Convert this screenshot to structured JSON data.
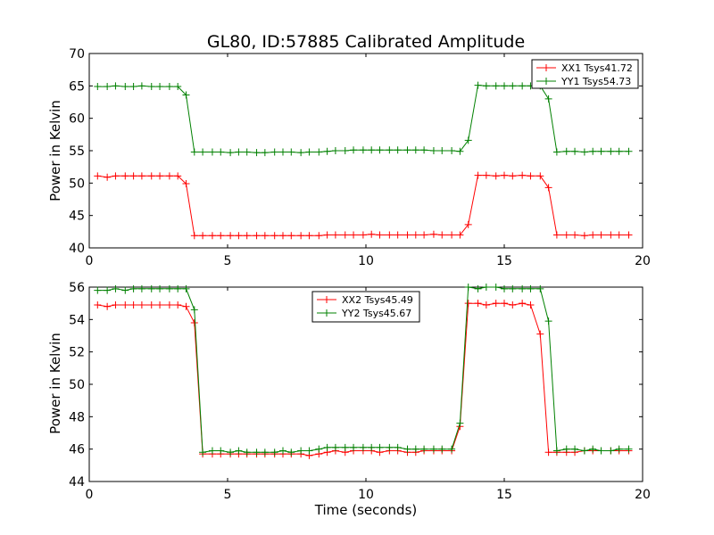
{
  "chart_data": [
    {
      "type": "line",
      "title": "GL80, ID:57885 Calibrated Amplitude",
      "xlabel": "",
      "ylabel": "Power in Kelvin",
      "xlim": [
        0,
        20
      ],
      "ylim": [
        40,
        70
      ],
      "xticks": [
        0,
        5,
        10,
        15,
        20
      ],
      "yticks": [
        40,
        45,
        50,
        55,
        60,
        65,
        70
      ],
      "grid": false,
      "legend_position": "top-right",
      "x": [
        0.3,
        0.65,
        0.95,
        1.3,
        1.6,
        1.9,
        2.25,
        2.55,
        2.9,
        3.2,
        3.5,
        3.8,
        4.1,
        4.45,
        4.75,
        5.1,
        5.4,
        5.7,
        6.05,
        6.35,
        6.7,
        7.0,
        7.3,
        7.65,
        7.95,
        8.3,
        8.6,
        8.9,
        9.25,
        9.55,
        9.9,
        10.2,
        10.5,
        10.85,
        11.15,
        11.5,
        11.8,
        12.1,
        12.45,
        12.75,
        13.1,
        13.4,
        13.7,
        14.05,
        14.35,
        14.7,
        15.0,
        15.3,
        15.65,
        15.95,
        16.3,
        16.6,
        16.9,
        17.25,
        17.55,
        17.9,
        18.2,
        18.5,
        18.85,
        19.15,
        19.5
      ],
      "series": [
        {
          "name": "XX1 Tsys41.72",
          "color": "#ff0000",
          "values": [
            51.1,
            50.9,
            51.1,
            51.1,
            51.1,
            51.1,
            51.1,
            51.1,
            51.1,
            51.1,
            49.9,
            41.9,
            41.9,
            41.9,
            41.9,
            41.9,
            41.9,
            41.9,
            41.9,
            41.9,
            41.9,
            41.9,
            41.9,
            41.9,
            41.9,
            41.9,
            42.0,
            42.0,
            42.0,
            42.0,
            42.0,
            42.1,
            42.0,
            42.0,
            42.0,
            42.0,
            42.0,
            42.0,
            42.1,
            42.0,
            42.0,
            42.0,
            43.6,
            51.2,
            51.2,
            51.1,
            51.2,
            51.1,
            51.2,
            51.1,
            51.1,
            49.3,
            42.0,
            42.0,
            42.0,
            41.9,
            42.0,
            42.0,
            42.0,
            42.0,
            42.0
          ]
        },
        {
          "name": "YY1 Tsys54.73",
          "color": "#008000",
          "values": [
            64.9,
            64.9,
            65.0,
            64.9,
            64.9,
            65.0,
            64.9,
            64.9,
            64.9,
            64.9,
            63.6,
            54.8,
            54.8,
            54.8,
            54.8,
            54.7,
            54.8,
            54.8,
            54.7,
            54.7,
            54.8,
            54.8,
            54.8,
            54.7,
            54.8,
            54.8,
            54.9,
            55.0,
            55.0,
            55.1,
            55.1,
            55.1,
            55.1,
            55.1,
            55.1,
            55.1,
            55.1,
            55.1,
            55.0,
            55.0,
            55.0,
            54.9,
            56.6,
            65.1,
            65.0,
            65.0,
            65.0,
            65.0,
            65.0,
            65.0,
            65.0,
            63.0,
            54.8,
            54.9,
            54.9,
            54.8,
            54.9,
            54.9,
            54.9,
            54.9,
            54.9
          ]
        }
      ]
    },
    {
      "type": "line",
      "title": "",
      "xlabel": "Time (seconds)",
      "ylabel": "Power in Kelvin",
      "xlim": [
        0,
        20
      ],
      "ylim": [
        44,
        56
      ],
      "xticks": [
        0,
        5,
        10,
        15,
        20
      ],
      "yticks": [
        44,
        46,
        48,
        50,
        52,
        54,
        56
      ],
      "grid": false,
      "legend_position": "top-center",
      "x": [
        0.3,
        0.65,
        0.95,
        1.3,
        1.6,
        1.9,
        2.25,
        2.55,
        2.9,
        3.2,
        3.5,
        3.8,
        4.1,
        4.45,
        4.75,
        5.1,
        5.4,
        5.7,
        6.05,
        6.35,
        6.7,
        7.0,
        7.3,
        7.65,
        7.95,
        8.3,
        8.6,
        8.9,
        9.25,
        9.55,
        9.9,
        10.2,
        10.5,
        10.85,
        11.15,
        11.5,
        11.8,
        12.1,
        12.45,
        12.75,
        13.1,
        13.4,
        13.7,
        14.05,
        14.35,
        14.7,
        15.0,
        15.3,
        15.65,
        15.95,
        16.3,
        16.6,
        16.9,
        17.25,
        17.55,
        17.9,
        18.2,
        18.5,
        18.85,
        19.15,
        19.5
      ],
      "series": [
        {
          "name": "XX2 Tsys45.49",
          "color": "#ff0000",
          "values": [
            54.9,
            54.8,
            54.9,
            54.9,
            54.9,
            54.9,
            54.9,
            54.9,
            54.9,
            54.9,
            54.8,
            53.8,
            45.7,
            45.7,
            45.7,
            45.7,
            45.7,
            45.7,
            45.7,
            45.7,
            45.7,
            45.7,
            45.7,
            45.7,
            45.6,
            45.7,
            45.8,
            45.9,
            45.8,
            45.9,
            45.9,
            45.9,
            45.8,
            45.9,
            45.9,
            45.8,
            45.8,
            45.9,
            45.9,
            45.9,
            45.9,
            47.4,
            55.0,
            55.0,
            54.9,
            55.0,
            55.0,
            54.9,
            55.0,
            54.9,
            53.1,
            45.8,
            45.8,
            45.8,
            45.8,
            45.9,
            45.9,
            45.9,
            45.9,
            45.9,
            45.9
          ]
        },
        {
          "name": "YY2 Tsys45.67",
          "color": "#008000",
          "values": [
            55.8,
            55.8,
            55.9,
            55.8,
            55.9,
            55.9,
            55.9,
            55.9,
            55.9,
            55.9,
            55.9,
            54.6,
            45.8,
            45.9,
            45.9,
            45.8,
            45.9,
            45.8,
            45.8,
            45.8,
            45.8,
            45.9,
            45.8,
            45.9,
            45.9,
            46.0,
            46.1,
            46.1,
            46.1,
            46.1,
            46.1,
            46.1,
            46.1,
            46.1,
            46.1,
            46.0,
            46.0,
            46.0,
            46.0,
            46.0,
            46.0,
            47.6,
            56.0,
            55.9,
            56.0,
            56.0,
            55.9,
            55.9,
            55.9,
            55.9,
            55.9,
            53.9,
            45.9,
            46.0,
            46.0,
            45.9,
            46.0,
            45.9,
            45.9,
            46.0,
            46.0
          ]
        }
      ]
    }
  ]
}
